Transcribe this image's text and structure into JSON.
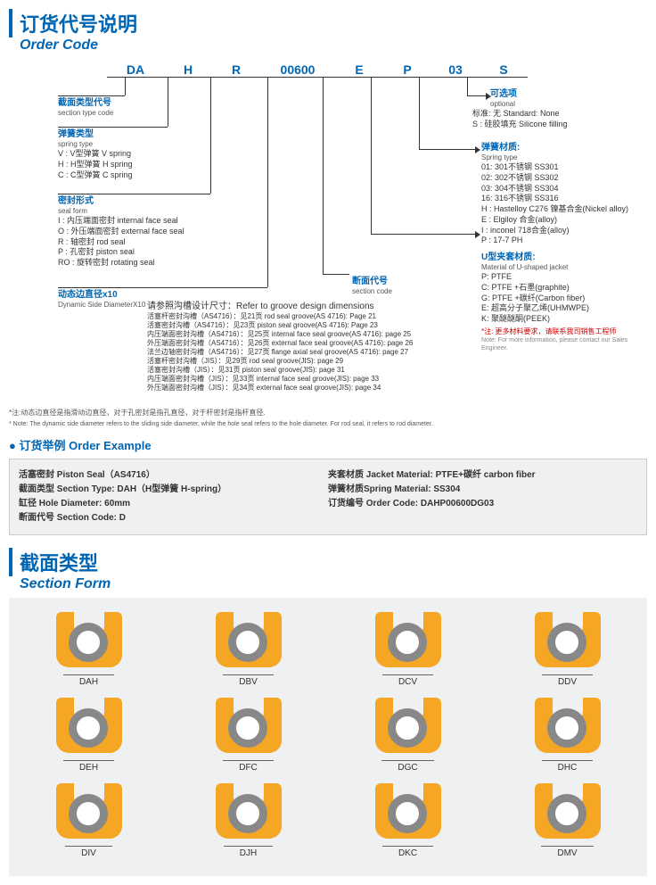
{
  "header": {
    "cn": "订货代号说明",
    "en": "Order Code"
  },
  "segments": [
    "DA",
    "H",
    "R",
    "00600",
    "E",
    "P",
    "03",
    "S"
  ],
  "left": {
    "section": {
      "t": "截面类型代号",
      "s": "section type code"
    },
    "spring": {
      "t": "弹簧类型",
      "s": "spring type",
      "items": [
        "V : V型弹簧  V spring",
        "H : H型弹簧  H spring",
        "C : C型弹簧  C spring"
      ]
    },
    "seal": {
      "t": "密封形式",
      "s": "seal form",
      "items": [
        "I : 内压端面密封  internal face seal",
        "O : 外压端面密封  external face seal",
        "R : 轴密封  rod seal",
        "P : 孔密封  piston seal",
        "RO : 旋转密封  rotating seal"
      ]
    },
    "dyn": {
      "t": "动态边直径x10",
      "s": "Dynamic Side DiameterX10"
    }
  },
  "right": {
    "opt": {
      "t": "可选项",
      "s": "optional",
      "items": [
        "标准: 无  Standard: None",
        "S : 硅胶填充  Silicone filling"
      ]
    },
    "springmat": {
      "t": "弹簧材质:",
      "s": "Spring type",
      "items": [
        "01: 301不锈钢 SS301",
        "02: 302不锈钢 SS302",
        "03: 304不锈钢 SS304",
        "16: 316不锈钢 SS316",
        "H : Hastelloy C276 镍基合金(Nickel  alloy)",
        "E : Elgiloy 合金(alloy)",
        "I : inconel 718合金(alloy)",
        "P : 17-7 PH"
      ]
    },
    "jacket": {
      "t": "U型夹套材质:",
      "s": "Material of U-shaped jacket",
      "items": [
        "P: PTFE",
        "C: PTFE +石墨(graphite)",
        "G: PTFE +碳纤(Carbon fiber)",
        "E: 超高分子聚乙烯(UHMWPE)",
        "K: 聚醚醚酮(PEEK)"
      ],
      "note": "*注: 更多材料要求，请联系我司销售工程师",
      "note_en": "Note: For more information, please contact our Sales Engineer."
    }
  },
  "mid": {
    "t": "断面代号",
    "s": "section code",
    "ref": "请参照沟槽设计尺寸：Refer to groove design dimensions",
    "lines": [
      "活塞杆密封沟槽（AS4716）：见21页  rod seal groove(AS 4716): Page 21",
      "活塞密封沟槽（AS4716）：见23页  piston seal groove(AS 4716): Page 23",
      "内压端面密封沟槽（AS4716）：见25页  internal face seal groove(AS 4716): page 25",
      "外压端面密封沟槽（AS4716）：见26页  external face seal groove(AS 4716): page 26",
      "法兰边轴密封沟槽（AS4716）：见27页  flange axial seal groove(AS 4716): page 27",
      "活塞杆密封沟槽（JIS）：见29页  rod seal groove(JIS): page 29",
      "活塞密封沟槽（JIS）：见31页  piston seal groove(JIS): page 31",
      "内压端面密封沟槽（JIS）：见33页  internal face seal groove(JIS): page 33",
      "外压端面密封沟槽（JIS）：见34页  external face seal groove(JIS): page 34"
    ]
  },
  "footnote_cn": "*注:动态边直径是指滑动边直径，对于孔密封是指孔直径，对于杆密封是指杆直径.",
  "footnote_en": "* Note: The dynamic side diameter refers to the sliding side diameter, while the hole seal refers to the hole diameter. For rod seal, it refers to rod diameter.",
  "example": {
    "hdr": "订货举例  Order Example",
    "l": [
      "活塞密封 Piston Seal（AS4716）",
      "截面类型 Section Type: DAH（H型弹簧 H-spring）",
      "缸径 Hole Diameter: 60mm",
      "断面代号 Section Code: D"
    ],
    "r": [
      "夹套材质 Jacket Material: PTFE+碳纤 carbon fiber",
      "弹簧材质Spring Material: SS304",
      "订货编号 Order Code: DAHP00600DG03"
    ]
  },
  "section": {
    "cn": "截面类型",
    "en": "Section Form",
    "rows": [
      [
        "DAH",
        "DBV",
        "DCV",
        "DDV"
      ],
      [
        "DEH",
        "DFC",
        "DGC",
        "DHC"
      ],
      [
        "DIV",
        "DJH",
        "DKC",
        "DMV"
      ]
    ]
  },
  "colors": {
    "blue": "#0066b3",
    "orange": "#f5a623",
    "grey": "#888",
    "bg": "#eef0f1"
  }
}
